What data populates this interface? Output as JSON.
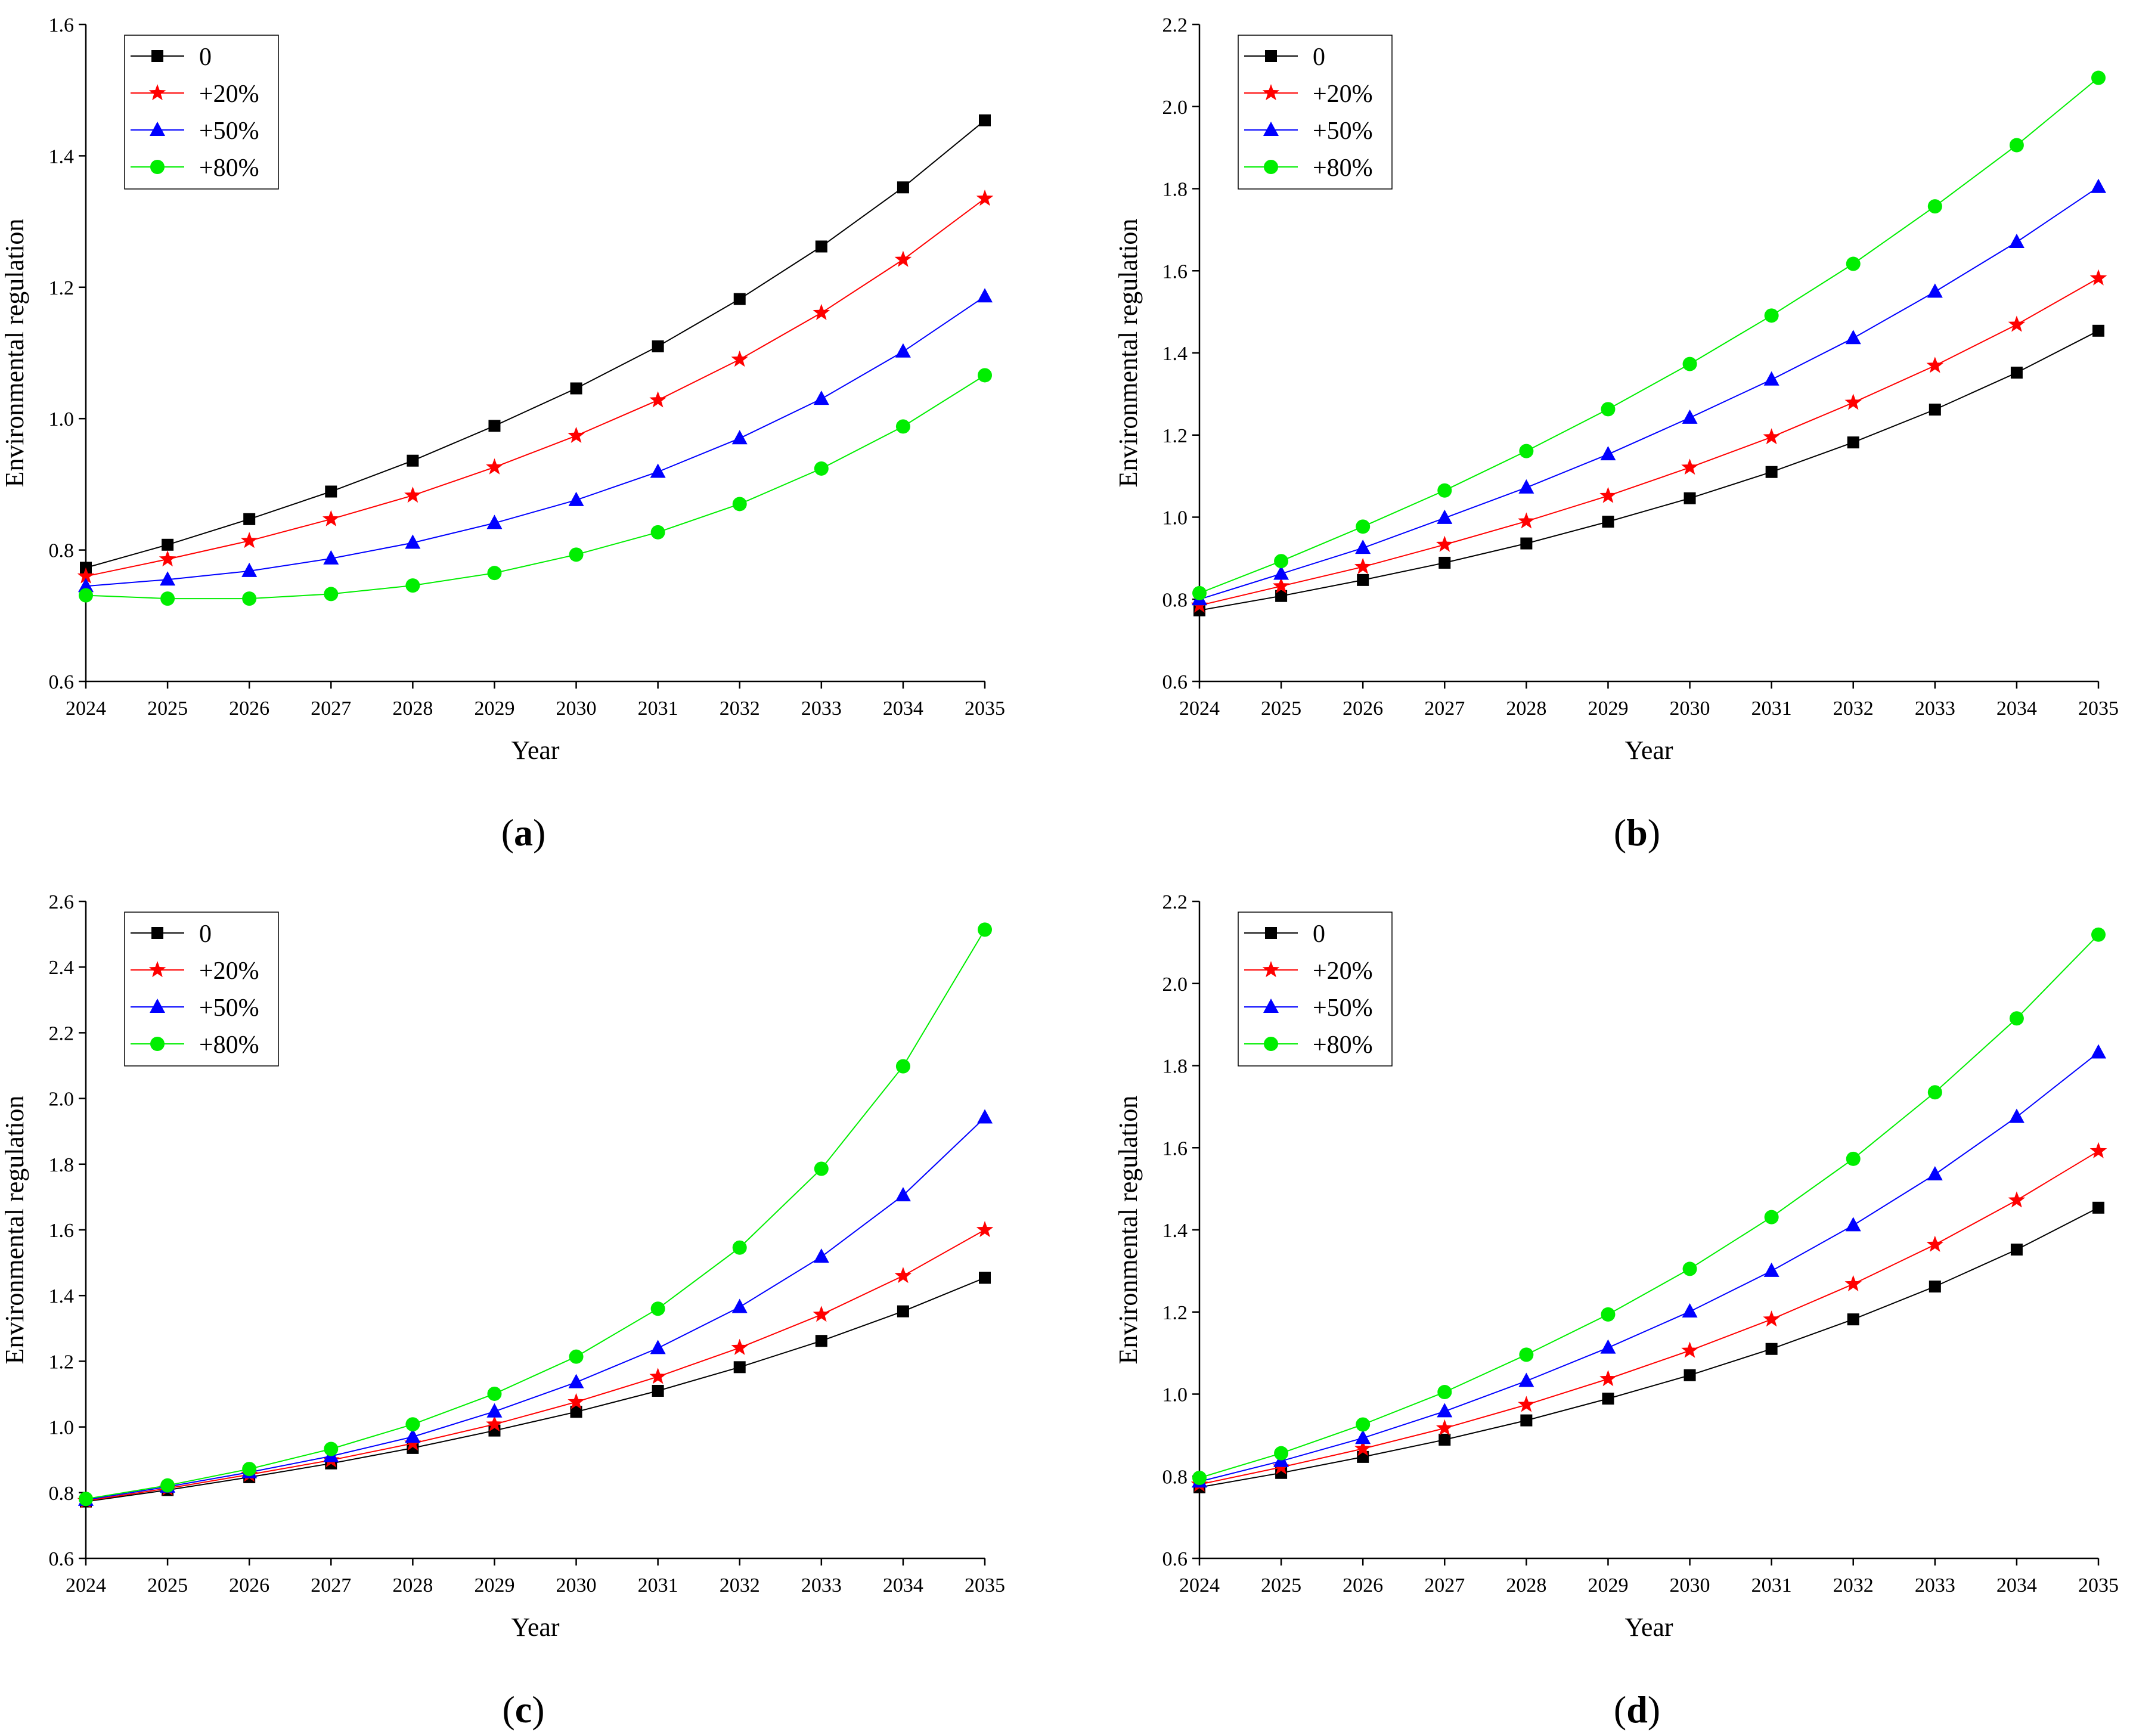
{
  "colors": {
    "series": [
      "#000000",
      "#ff0000",
      "#0000ff",
      "#00ee00"
    ],
    "axis": "#000000",
    "background": "#ffffff"
  },
  "legend_position": "top-left",
  "chart_data": [
    {
      "type": "line",
      "panel_label": "a",
      "xlabel": "Year",
      "ylabel": "Environmental regulation",
      "ylim": [
        0.6,
        1.6
      ],
      "yticks": [
        "0.6",
        "0.8",
        "1.0",
        "1.2",
        "1.4",
        "1.6"
      ],
      "categories": [
        "2024",
        "2025",
        "2026",
        "2027",
        "2028",
        "2029",
        "2030",
        "2031",
        "2032",
        "2033",
        "2034",
        "2035"
      ],
      "series": [
        {
          "name": "0",
          "marker": "square",
          "values": [
            0.773,
            0.808,
            0.847,
            0.889,
            0.936,
            0.989,
            1.046,
            1.11,
            1.182,
            1.262,
            1.352,
            1.454
          ]
        },
        {
          "name": "+20%",
          "marker": "star",
          "values": [
            0.76,
            0.786,
            0.814,
            0.847,
            0.883,
            0.926,
            0.974,
            1.028,
            1.09,
            1.161,
            1.242,
            1.335
          ]
        },
        {
          "name": "+50%",
          "marker": "triangle",
          "values": [
            0.745,
            0.755,
            0.768,
            0.787,
            0.811,
            0.841,
            0.876,
            0.919,
            0.97,
            1.03,
            1.102,
            1.186
          ]
        },
        {
          "name": "+80%",
          "marker": "circle",
          "values": [
            0.731,
            0.726,
            0.726,
            0.733,
            0.746,
            0.765,
            0.793,
            0.827,
            0.87,
            0.924,
            0.988,
            1.066
          ]
        }
      ]
    },
    {
      "type": "line",
      "panel_label": "b",
      "xlabel": "Year",
      "ylabel": "Environmental regulation",
      "ylim": [
        0.6,
        2.2
      ],
      "yticks": [
        "0.6",
        "0.8",
        "1.0",
        "1.2",
        "1.4",
        "1.6",
        "1.8",
        "2.0",
        "2.2"
      ],
      "categories": [
        "2024",
        "2025",
        "2026",
        "2027",
        "2028",
        "2029",
        "2030",
        "2031",
        "2032",
        "2033",
        "2034",
        "2035"
      ],
      "series": [
        {
          "name": "0",
          "marker": "square",
          "values": [
            0.773,
            0.808,
            0.847,
            0.889,
            0.936,
            0.989,
            1.046,
            1.11,
            1.182,
            1.262,
            1.352,
            1.454
          ]
        },
        {
          "name": "+20%",
          "marker": "star",
          "values": [
            0.785,
            0.832,
            0.879,
            0.933,
            0.99,
            1.052,
            1.121,
            1.195,
            1.279,
            1.369,
            1.469,
            1.582
          ]
        },
        {
          "name": "+50%",
          "marker": "triangle",
          "values": [
            0.8,
            0.862,
            0.925,
            0.998,
            1.072,
            1.153,
            1.242,
            1.335,
            1.436,
            1.549,
            1.67,
            1.804
          ]
        },
        {
          "name": "+80%",
          "marker": "circle",
          "values": [
            0.815,
            0.893,
            0.977,
            1.065,
            1.161,
            1.263,
            1.373,
            1.491,
            1.617,
            1.757,
            1.906,
            2.07
          ]
        }
      ]
    },
    {
      "type": "line",
      "panel_label": "c",
      "xlabel": "Year",
      "ylabel": "Environmental regulation",
      "ylim": [
        0.6,
        2.6
      ],
      "yticks": [
        "0.6",
        "0.8",
        "1.0",
        "1.2",
        "1.4",
        "1.6",
        "1.8",
        "2.0",
        "2.2",
        "2.4",
        "2.6"
      ],
      "categories": [
        "2024",
        "2025",
        "2026",
        "2027",
        "2028",
        "2029",
        "2030",
        "2031",
        "2032",
        "2033",
        "2034",
        "2035"
      ],
      "series": [
        {
          "name": "0",
          "marker": "square",
          "values": [
            0.773,
            0.808,
            0.847,
            0.889,
            0.936,
            0.989,
            1.046,
            1.11,
            1.182,
            1.262,
            1.352,
            1.454
          ]
        },
        {
          "name": "+20%",
          "marker": "star",
          "values": [
            0.775,
            0.813,
            0.855,
            0.899,
            0.95,
            1.008,
            1.076,
            1.153,
            1.241,
            1.342,
            1.46,
            1.6
          ]
        },
        {
          "name": "+50%",
          "marker": "triangle",
          "values": [
            0.778,
            0.818,
            0.862,
            0.911,
            0.97,
            1.047,
            1.136,
            1.24,
            1.365,
            1.518,
            1.705,
            1.942
          ]
        },
        {
          "name": "+80%",
          "marker": "circle",
          "values": [
            0.781,
            0.822,
            0.872,
            0.933,
            1.008,
            1.101,
            1.214,
            1.36,
            1.546,
            1.786,
            2.098,
            2.514
          ]
        }
      ]
    },
    {
      "type": "line",
      "panel_label": "d",
      "xlabel": "Year",
      "ylabel": "Environmental regulation",
      "ylim": [
        0.6,
        2.2
      ],
      "yticks": [
        "0.6",
        "0.8",
        "1.0",
        "1.2",
        "1.4",
        "1.6",
        "1.8",
        "2.0",
        "2.2"
      ],
      "categories": [
        "2024",
        "2025",
        "2026",
        "2027",
        "2028",
        "2029",
        "2030",
        "2031",
        "2032",
        "2033",
        "2034",
        "2035"
      ],
      "series": [
        {
          "name": "0",
          "marker": "square",
          "values": [
            0.773,
            0.808,
            0.847,
            0.889,
            0.936,
            0.989,
            1.046,
            1.11,
            1.182,
            1.262,
            1.352,
            1.454
          ]
        },
        {
          "name": "+20%",
          "marker": "star",
          "values": [
            0.78,
            0.822,
            0.867,
            0.917,
            0.974,
            1.037,
            1.106,
            1.182,
            1.268,
            1.364,
            1.472,
            1.592
          ]
        },
        {
          "name": "+50%",
          "marker": "triangle",
          "values": [
            0.787,
            0.837,
            0.893,
            0.958,
            1.032,
            1.113,
            1.201,
            1.3,
            1.411,
            1.535,
            1.675,
            1.832
          ]
        },
        {
          "name": "+80%",
          "marker": "circle",
          "values": [
            0.796,
            0.856,
            0.926,
            1.005,
            1.096,
            1.194,
            1.305,
            1.431,
            1.573,
            1.735,
            1.915,
            2.119
          ]
        }
      ]
    }
  ]
}
